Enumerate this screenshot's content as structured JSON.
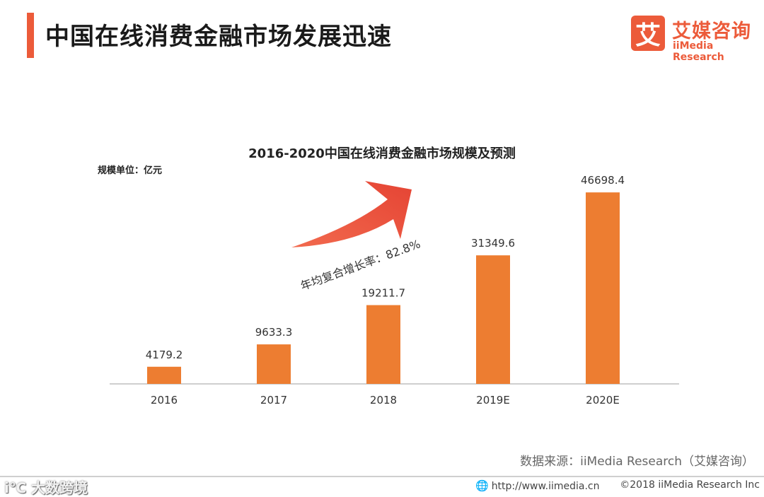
{
  "header": {
    "title": "中国在线消费金融市场发展迅速",
    "logo_mark": "艾",
    "logo_cn": "艾媒咨询",
    "logo_en": "iiMedia Research"
  },
  "colors": {
    "accent": "#ec5b3a",
    "bar": "#ed7d31",
    "arrow": "#e8513f"
  },
  "chart_data": {
    "type": "bar",
    "title": "2016-2020中国在线消费金融市场规模及预测",
    "unit_label": "规模单位：亿元",
    "categories": [
      "2016",
      "2017",
      "2018",
      "2019E",
      "2020E"
    ],
    "values": [
      4179.2,
      9633.3,
      19211.7,
      31349.6,
      46698.4
    ],
    "value_labels": [
      "4179.2",
      "9633.3",
      "19211.7",
      "31349.6",
      "46698.4"
    ],
    "ylim": [
      0,
      50000
    ],
    "annotation": "年均复合增长率：82.8%"
  },
  "footer": {
    "source": "数据来源：iiMedia Research（艾媒咨询）",
    "watermark": "i℃ 大数跨境",
    "url": "http://www.iimedia.cn",
    "copyright": "©2018  iiMedia Research  Inc"
  }
}
